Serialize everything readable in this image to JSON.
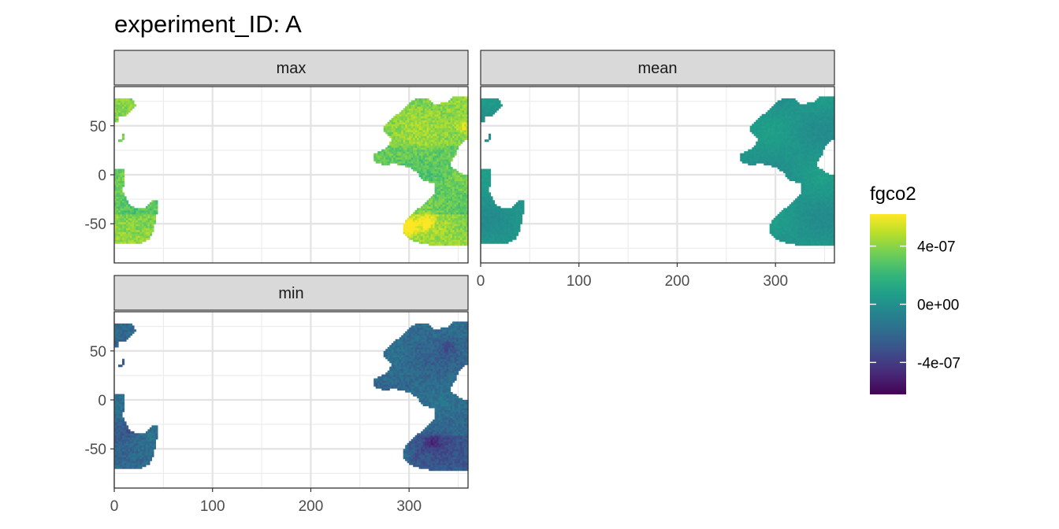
{
  "chart_data": {
    "type": "heatmap",
    "title": "experiment_ID: A",
    "xlabel": "",
    "ylabel": "",
    "xlim": [
      0,
      360
    ],
    "ylim": [
      -90,
      90
    ],
    "x_ticks": [
      0,
      100,
      200,
      300
    ],
    "y_ticks": [
      -50,
      0,
      50
    ],
    "grid": true,
    "facets": [
      {
        "label": "max",
        "field_bias": 0.26,
        "noise": 0.07,
        "hot_spots": [
          [
            355,
            50,
            0.16
          ],
          [
            318,
            -48,
            0.18
          ],
          [
            300,
            -53,
            0.28
          ]
        ]
      },
      {
        "label": "mean",
        "field_bias": 0.02,
        "noise": 0.02,
        "hot_spots": []
      },
      {
        "label": "min",
        "field_bias": -0.16,
        "noise": 0.06,
        "hot_spots": [
          [
            325,
            -43,
            -0.12
          ],
          [
            340,
            55,
            -0.08
          ],
          [
            15,
            -30,
            -0.1
          ]
        ]
      }
    ],
    "legend": {
      "title": "fgco2",
      "position": "right",
      "colormap": "viridis",
      "range": [
        -6.2e-07,
        6.2e-07
      ],
      "ticks": [
        {
          "value": 4e-07,
          "label": "4e-07"
        },
        {
          "value": 0,
          "label": "0e+00"
        },
        {
          "value": -4e-07,
          "label": "-4e-07"
        }
      ]
    }
  }
}
